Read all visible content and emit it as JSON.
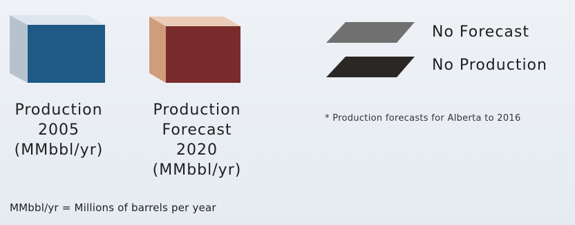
{
  "cubes": [
    {
      "id": "production-2005",
      "lines": [
        "Production",
        "2005",
        "(MMbbl/yr)"
      ],
      "colors": {
        "top": "#dde5ee",
        "left": "#b7c2cf",
        "front": "#1f5a86"
      }
    },
    {
      "id": "production-forecast-2020",
      "lines": [
        "Production",
        "Forecast",
        "2020",
        "(MMbbl/yr)"
      ],
      "colors": {
        "top": "#e9cdb7",
        "left": "#cf9c7c",
        "front": "#7a2b2b"
      }
    }
  ],
  "legend": [
    {
      "label": "No Forecast",
      "color": "#707070"
    },
    {
      "label": "No Production",
      "color": "#2b2724"
    }
  ],
  "footnote": "* Production forecasts for Alberta to 2016",
  "units_note": "MMbbl/yr = Millions of barrels per year"
}
